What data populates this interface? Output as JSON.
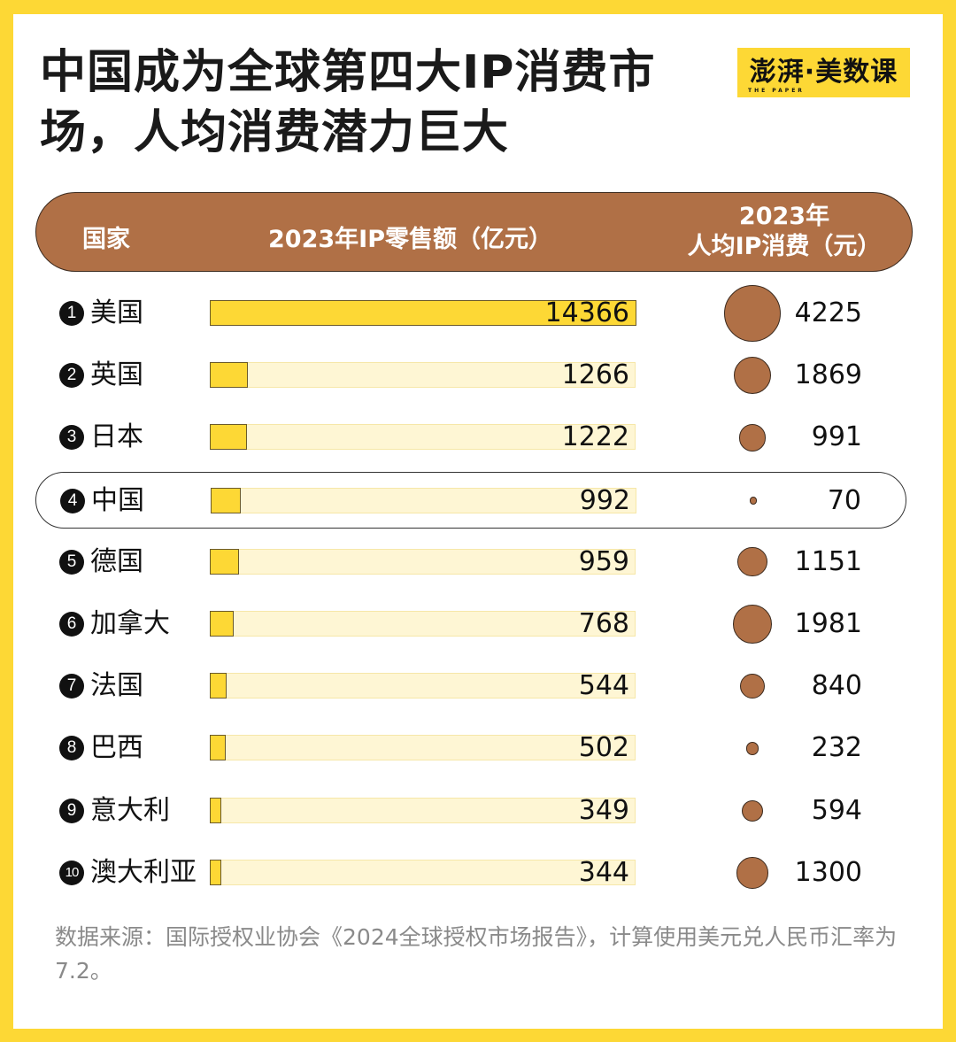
{
  "title": "中国成为全球第四大IP消费市场，人均消费潜力巨大",
  "logo": {
    "main": "澎湃·美数课",
    "sub": "THE PAPER"
  },
  "header": {
    "country": "国家",
    "retail": "2023年IP零售额（亿元）",
    "percap_line1": "2023年",
    "percap_line2": "人均IP消费（元）"
  },
  "rows": [
    {
      "rank": "1",
      "country": "美国",
      "retail": "14366",
      "percap": "4225"
    },
    {
      "rank": "2",
      "country": "英国",
      "retail": "1266",
      "percap": "1869"
    },
    {
      "rank": "3",
      "country": "日本",
      "retail": "1222",
      "percap": "991"
    },
    {
      "rank": "4",
      "country": "中国",
      "retail": "992",
      "percap": "70",
      "highlight": true
    },
    {
      "rank": "5",
      "country": "德国",
      "retail": "959",
      "percap": "1151"
    },
    {
      "rank": "6",
      "country": "加拿大",
      "retail": "768",
      "percap": "1981"
    },
    {
      "rank": "7",
      "country": "法国",
      "retail": "544",
      "percap": "840"
    },
    {
      "rank": "8",
      "country": "巴西",
      "retail": "502",
      "percap": "232"
    },
    {
      "rank": "9",
      "country": "意大利",
      "retail": "349",
      "percap": "594"
    },
    {
      "rank": "10",
      "country": "澳大利亚",
      "retail": "344",
      "percap": "1300"
    }
  ],
  "source": "数据来源：国际授权业协会《2024全球授权市场报告》，计算使用美元兑人民币汇率为7.2。",
  "colors": {
    "border": "#FDD835",
    "bar": "#FDD835",
    "bar_track": "#FEF6D4",
    "bubble": "#B07046",
    "header": "#B07046"
  },
  "chart_data": {
    "type": "table",
    "title": "中国成为全球第四大IP消费市场，人均消费潜力巨大",
    "categories": [
      "美国",
      "英国",
      "日本",
      "中国",
      "德国",
      "加拿大",
      "法国",
      "巴西",
      "意大利",
      "澳大利亚"
    ],
    "series": [
      {
        "name": "2023年IP零售额（亿元）",
        "type": "bar",
        "values": [
          14366,
          1266,
          1222,
          992,
          959,
          768,
          544,
          502,
          349,
          344
        ]
      },
      {
        "name": "2023年人均IP消费（元）",
        "type": "bubble",
        "values": [
          4225,
          1869,
          991,
          70,
          1151,
          1981,
          840,
          232,
          594,
          1300
        ]
      }
    ],
    "highlight": "中国",
    "note": "数据来源：国际授权业协会《2024全球授权市场报告》，计算使用美元兑人民币汇率为7.2。"
  }
}
